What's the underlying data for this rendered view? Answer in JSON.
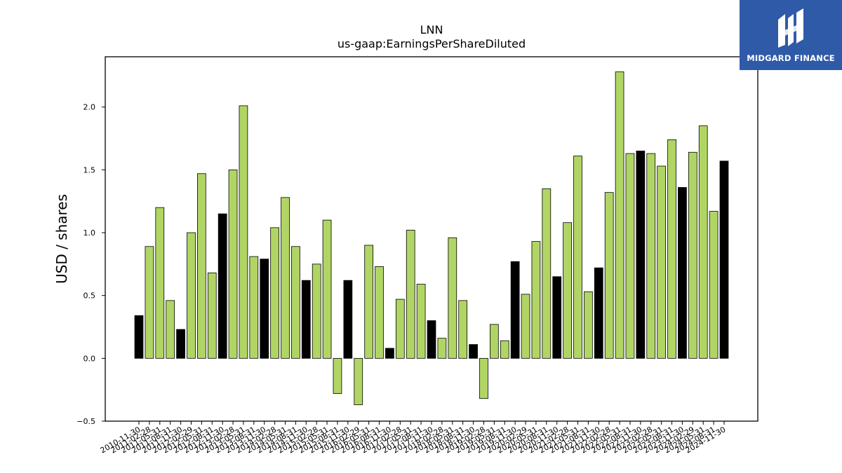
{
  "logo": {
    "text": "MIDGARD FINANCE",
    "icon": "midgard-logo-icon",
    "background": "#2f5aa8"
  },
  "chart_data": {
    "type": "bar",
    "title": "LNN",
    "subtitle": "us-gaap:EarningsPerShareDiluted",
    "xlabel": "",
    "ylabel": "USD / shares",
    "ylim": [
      -0.5,
      2.4
    ],
    "yticks": [
      "−0.5",
      "0.0",
      "0.5",
      "1.0",
      "1.5",
      "2.0"
    ],
    "grid": false,
    "colors": {
      "green": "#b0d565",
      "black": "#000000"
    },
    "categories": [
      "2010-11-30",
      "2011-02-28",
      "2011-05-31",
      "2011-08-31",
      "2011-11-30",
      "2012-02-29",
      "2012-05-31",
      "2012-08-31",
      "2012-11-30",
      "2013-02-28",
      "2013-05-31",
      "2013-08-31",
      "2013-11-30",
      "2014-02-28",
      "2014-05-31",
      "2014-08-31",
      "2014-11-30",
      "2015-02-28",
      "2015-05-31",
      "2015-08-31",
      "2015-11-30",
      "2016-02-29",
      "2016-05-31",
      "2016-08-31",
      "2016-11-30",
      "2017-02-28",
      "2017-05-31",
      "2017-08-31",
      "2017-11-30",
      "2018-02-28",
      "2018-05-31",
      "2018-08-31",
      "2018-11-30",
      "2019-02-28",
      "2019-05-31",
      "2019-08-31",
      "2019-11-30",
      "2020-02-29",
      "2020-05-31",
      "2020-08-31",
      "2020-11-30",
      "2021-02-28",
      "2021-05-31",
      "2021-08-31",
      "2021-11-30",
      "2022-02-28",
      "2022-05-31",
      "2022-08-31",
      "2022-11-30",
      "2023-02-28",
      "2023-05-31",
      "2023-08-31",
      "2023-11-30",
      "2024-02-29",
      "2024-05-31",
      "2024-08-31",
      "2024-11-30"
    ],
    "values": [
      0.34,
      0.89,
      1.2,
      0.46,
      0.23,
      1.0,
      1.47,
      0.68,
      1.15,
      1.5,
      2.01,
      0.81,
      0.79,
      1.04,
      1.28,
      0.89,
      0.62,
      0.75,
      1.1,
      -0.28,
      0.62,
      -0.37,
      0.9,
      0.73,
      0.08,
      0.47,
      1.02,
      0.59,
      0.3,
      0.16,
      0.96,
      0.46,
      0.11,
      -0.32,
      0.27,
      0.14,
      0.77,
      0.51,
      0.93,
      1.35,
      0.65,
      1.08,
      1.61,
      0.53,
      0.72,
      1.32,
      2.28,
      1.63,
      1.65,
      1.63,
      1.53,
      1.74,
      1.36,
      1.64,
      1.85,
      1.17,
      1.57
    ],
    "bar_colors": [
      "black",
      "green",
      "green",
      "green",
      "black",
      "green",
      "green",
      "green",
      "black",
      "green",
      "green",
      "green",
      "black",
      "green",
      "green",
      "green",
      "black",
      "green",
      "green",
      "green",
      "black",
      "green",
      "green",
      "green",
      "black",
      "green",
      "green",
      "green",
      "black",
      "green",
      "green",
      "green",
      "black",
      "green",
      "green",
      "green",
      "black",
      "green",
      "green",
      "green",
      "black",
      "green",
      "green",
      "green",
      "black",
      "green",
      "green",
      "green",
      "black",
      "green",
      "green",
      "green",
      "black",
      "green",
      "green",
      "green",
      "black"
    ]
  }
}
